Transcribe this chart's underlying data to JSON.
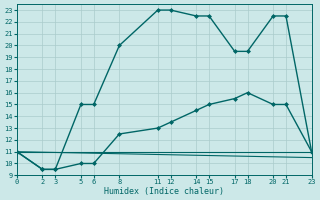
{
  "xlabel": "Humidex (Indice chaleur)",
  "bg_color": "#cce8e8",
  "grid_color": "#aacccc",
  "line_color": "#006666",
  "xlim": [
    0,
    23
  ],
  "ylim": [
    9,
    23.5
  ],
  "xticks": [
    0,
    2,
    3,
    5,
    6,
    8,
    11,
    12,
    14,
    15,
    17,
    18,
    20,
    21,
    23
  ],
  "yticks": [
    9,
    10,
    11,
    12,
    13,
    14,
    15,
    16,
    17,
    18,
    19,
    20,
    21,
    22,
    23
  ],
  "lines": [
    {
      "x": [
        0,
        2,
        3,
        5,
        6,
        8,
        11,
        12,
        14,
        15,
        17,
        18,
        20,
        21,
        23
      ],
      "y": [
        11,
        9.5,
        9.5,
        15,
        15,
        20,
        23,
        23,
        22.5,
        22.5,
        19.5,
        19.5,
        22.5,
        22.5,
        11
      ],
      "marker": true,
      "linewidth": 1.0
    },
    {
      "x": [
        0,
        2,
        3,
        5,
        6,
        8,
        11,
        12,
        14,
        15,
        17,
        18,
        20,
        21,
        23
      ],
      "y": [
        11,
        9.5,
        9.5,
        10.0,
        10.0,
        12.5,
        13.0,
        13.5,
        14.5,
        15.0,
        15.5,
        16.0,
        15.0,
        15.0,
        11
      ],
      "marker": true,
      "linewidth": 1.0
    },
    {
      "x": [
        0,
        23
      ],
      "y": [
        11,
        11
      ],
      "marker": false,
      "linewidth": 0.8
    },
    {
      "x": [
        0,
        23
      ],
      "y": [
        11,
        10.5
      ],
      "marker": false,
      "linewidth": 0.8
    }
  ]
}
